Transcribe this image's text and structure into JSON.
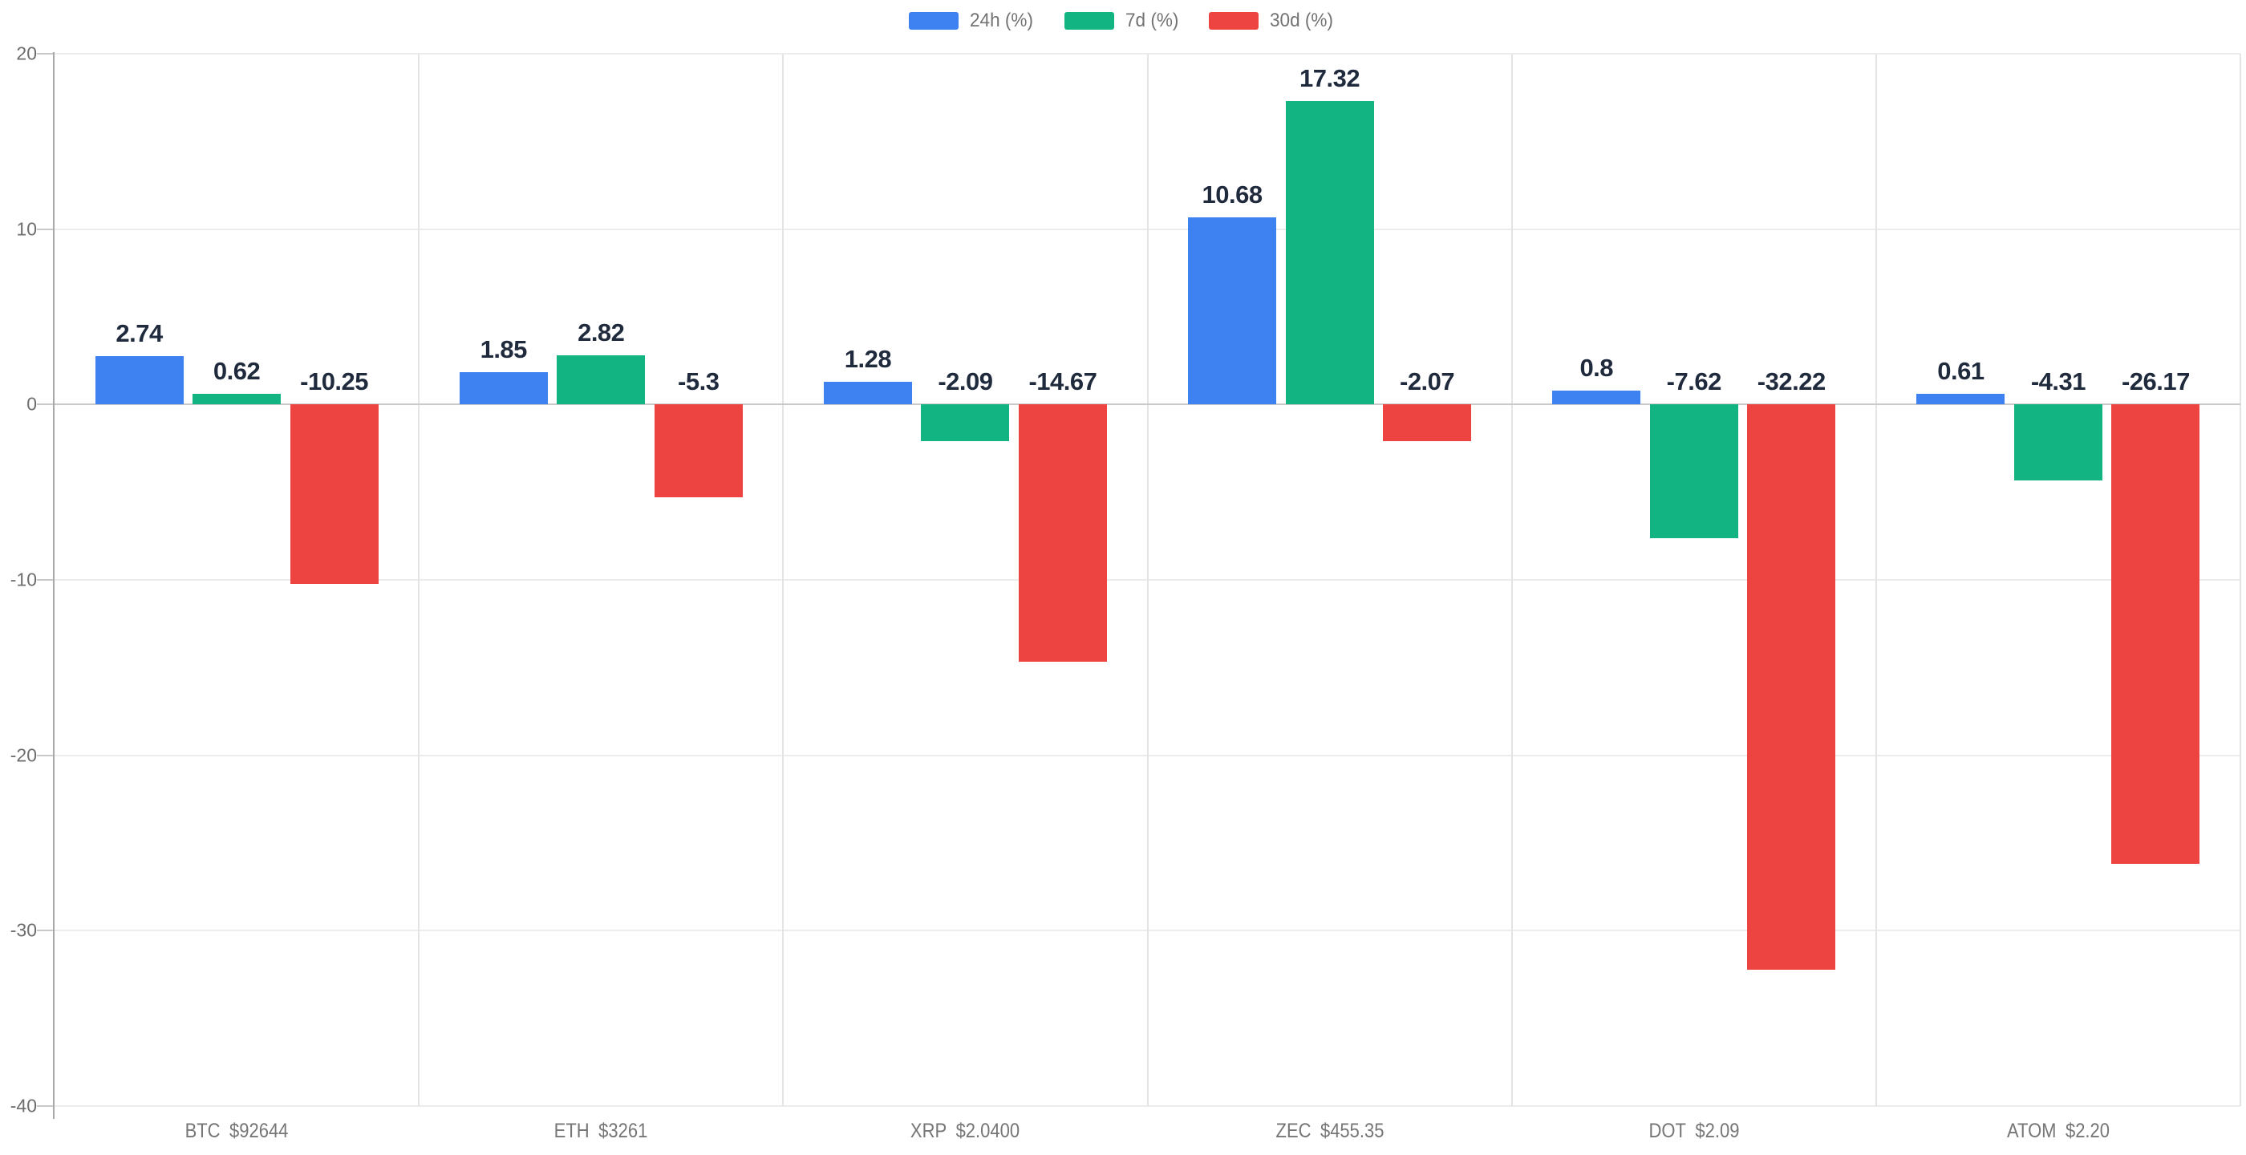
{
  "chart_data": {
    "type": "bar",
    "title": "",
    "xlabel": "",
    "ylabel": "",
    "categories": [
      "BTC",
      "ETH",
      "XRP",
      "ZEC",
      "DOT",
      "ATOM"
    ],
    "category_prices": [
      "$92644",
      "$3261",
      "$2.0400",
      "$455.35",
      "$2.09",
      "$2.20"
    ],
    "series": [
      {
        "name": "24h (%)",
        "color": "#3e82f1",
        "values": [
          2.74,
          1.85,
          1.28,
          10.68,
          0.8,
          0.61
        ]
      },
      {
        "name": "7d (%)",
        "color": "#12b581",
        "values": [
          0.62,
          2.82,
          -2.09,
          17.32,
          -7.62,
          -4.31
        ]
      },
      {
        "name": "30d (%)",
        "color": "#ee4441",
        "values": [
          -10.25,
          -5.3,
          -14.67,
          -2.07,
          -32.22,
          -26.17
        ]
      }
    ],
    "ylim": [
      -40,
      20
    ],
    "yticks": [
      20,
      10,
      0,
      -10,
      -20,
      -30,
      -40
    ],
    "grid": true,
    "legend_position": "top-center",
    "value_labels": "shown above bars (above zero line for negative bars)"
  },
  "colors": {
    "background": "#ffffff",
    "gridline": "#ececec",
    "zero_line": "#c9c9c9",
    "axis_line": "#a8a8a8",
    "separator": "#e4e4e4",
    "tick_label": "#6e6e6e",
    "category_label": "#767676",
    "value_label": "#1f2a3d",
    "legend_label": "#737373"
  }
}
